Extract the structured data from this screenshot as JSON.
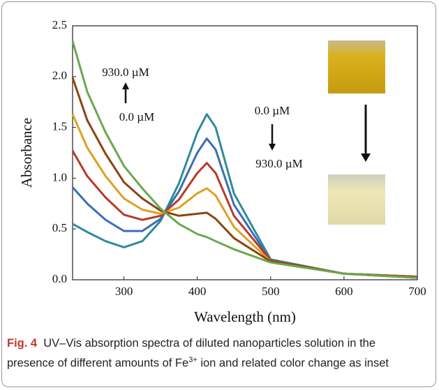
{
  "chart_data": {
    "type": "line",
    "xlabel": "Wavelength (nm)",
    "ylabel": "Absorbance",
    "x": [
      230,
      250,
      275,
      300,
      325,
      350,
      375,
      400,
      413,
      425,
      450,
      500,
      600,
      700
    ],
    "series": [
      {
        "color": "#2e8b9a",
        "values": [
          0.55,
          0.47,
          0.38,
          0.32,
          0.38,
          0.58,
          0.95,
          1.45,
          1.63,
          1.5,
          0.85,
          0.2,
          0.06,
          0.03
        ]
      },
      {
        "color": "#3a6fb0",
        "values": [
          0.91,
          0.75,
          0.59,
          0.48,
          0.48,
          0.6,
          0.87,
          1.25,
          1.39,
          1.28,
          0.74,
          0.19,
          0.06,
          0.03
        ]
      },
      {
        "color": "#b83a2a",
        "values": [
          1.27,
          1.02,
          0.81,
          0.64,
          0.59,
          0.63,
          0.79,
          1.05,
          1.15,
          1.05,
          0.63,
          0.19,
          0.06,
          0.03
        ]
      },
      {
        "color": "#e0a020",
        "values": [
          1.63,
          1.3,
          1.02,
          0.8,
          0.69,
          0.65,
          0.71,
          0.85,
          0.9,
          0.83,
          0.52,
          0.18,
          0.06,
          0.02
        ]
      },
      {
        "color": "#8b4513",
        "values": [
          1.99,
          1.57,
          1.24,
          0.96,
          0.8,
          0.68,
          0.63,
          0.65,
          0.66,
          0.6,
          0.41,
          0.18,
          0.06,
          0.02
        ]
      },
      {
        "color": "#6aa84f",
        "values": [
          2.35,
          1.85,
          1.45,
          1.12,
          0.9,
          0.7,
          0.55,
          0.45,
          0.42,
          0.38,
          0.3,
          0.17,
          0.06,
          0.02
        ]
      }
    ],
    "xlim": [
      230,
      700
    ],
    "xticks": [
      300,
      400,
      500,
      600,
      700
    ],
    "ylim": [
      0,
      2.5
    ],
    "yticks": [
      {
        "value": 0,
        "label": "0.0"
      },
      {
        "value": 0.5,
        "label": "0.5"
      },
      {
        "value": 1,
        "label": "1.0"
      },
      {
        "value": 1.5,
        "label": "1.5"
      },
      {
        "value": 2,
        "label": "2.0"
      },
      {
        "value": 2.5,
        "label": "2.5"
      }
    ],
    "annotations": [
      "930.0 µM",
      "0.0 µM",
      "0.0 µM",
      "930.0 µM"
    ]
  },
  "caption": {
    "label": "Fig. 4",
    "text_pre": "UV–Vis absorption spectra of diluted nanoparticles solution in the presence of different amounts of Fe",
    "superscript": "3+",
    "text_post": " ion and related color change as inset"
  }
}
